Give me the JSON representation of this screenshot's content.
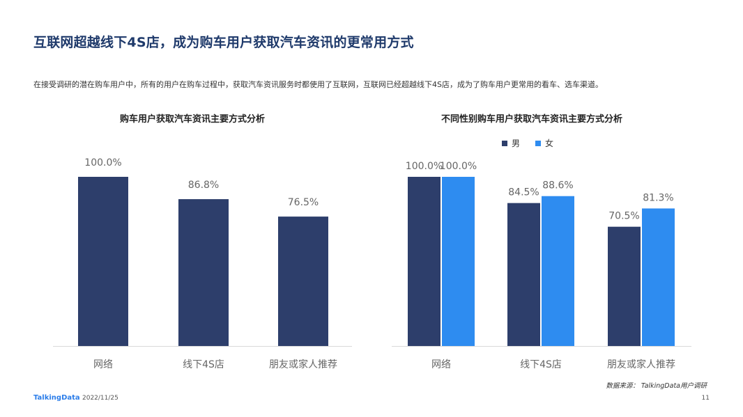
{
  "page": {
    "title": "互联网超越线下4S店，成为购车用户获取汽车资讯的更常用方式",
    "subtitle": "在接受调研的潜在购车用户中，所有的用户在购车过程中，获取汽车资讯服务时都使用了互联网，互联网已经超越线下4S店，成为了购车用户更常用的看车、选车渠道。",
    "source": "数据来源：  TalkingData用户调研",
    "footer_logo": "TalkingData",
    "footer_date": "2022/11/25",
    "page_number": "11"
  },
  "colors": {
    "dark_navy": "#2d3e6b",
    "blue": "#2e8cf0",
    "title": "#1f3a6b"
  },
  "chart_data": [
    {
      "type": "bar",
      "title": "购车用户获取汽车资讯主要方式分析",
      "categories": [
        "网络",
        "线下4S店",
        "朋友或家人推荐"
      ],
      "series": [
        {
          "values": [
            100.0,
            86.8,
            76.5
          ],
          "color": "#2d3e6b"
        }
      ],
      "value_labels": [
        "100.0%",
        "86.8%",
        "76.5%"
      ],
      "ylim": [
        0,
        100
      ],
      "grid": false
    },
    {
      "type": "bar",
      "title": "不同性别购车用户获取汽车资讯主要方式分析",
      "categories": [
        "网络",
        "线下4S店",
        "朋友或家人推荐"
      ],
      "series": [
        {
          "name": "男",
          "values": [
            100.0,
            84.5,
            70.5
          ],
          "color": "#2d3e6b",
          "value_labels": [
            "100.0%",
            "84.5%",
            "70.5%"
          ]
        },
        {
          "name": "女",
          "values": [
            100.0,
            88.6,
            81.3
          ],
          "color": "#2e8cf0",
          "value_labels": [
            "100.0%",
            "88.6%",
            "81.3%"
          ]
        }
      ],
      "legend": "top-right",
      "ylim": [
        0,
        100
      ],
      "grid": false
    }
  ]
}
